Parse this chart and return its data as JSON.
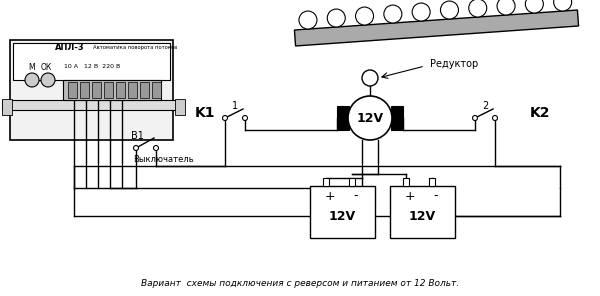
{
  "bg_color": "#ffffff",
  "title_text": "Вариант  схемы подключения с реверсом и питанием от 12 Вольт.",
  "device_label": "АПЛ-3",
  "device_sublabel": "Автоматика поворота потоков",
  "device_specs": "10 А   12 В  220 В",
  "motor_label": "12V",
  "battery1_label": "12V",
  "battery2_label": "12V",
  "reductor_label": "Редуктор",
  "k1_label": "K1",
  "k2_label": "K2",
  "b1_label": "B1",
  "vyklyuchatel_label": "Выключатель",
  "m_label": "M",
  "ok_label": "ОК",
  "label_1": "1",
  "label_2": "2"
}
